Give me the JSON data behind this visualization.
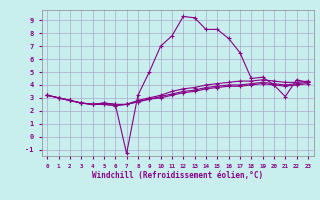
{
  "title": "",
  "xlabel": "Windchill (Refroidissement éolien,°C)",
  "ylabel": "",
  "xlim": [
    -0.5,
    23.5
  ],
  "ylim": [
    -1.5,
    9.8
  ],
  "yticks": [
    -1,
    0,
    1,
    2,
    3,
    4,
    5,
    6,
    7,
    8,
    9
  ],
  "xticks": [
    0,
    1,
    2,
    3,
    4,
    5,
    6,
    7,
    8,
    9,
    10,
    11,
    12,
    13,
    14,
    15,
    16,
    17,
    18,
    19,
    20,
    21,
    22,
    23
  ],
  "bg_color": "#c8eeee",
  "grid_color": "#aaaacc",
  "line_color": "#880088",
  "lines": [
    {
      "x": [
        0,
        1,
        2,
        3,
        4,
        5,
        6,
        7,
        8,
        9,
        10,
        11,
        12,
        13,
        14,
        15,
        16,
        17,
        18,
        19,
        20,
        21,
        22,
        23
      ],
      "y": [
        3.2,
        3.0,
        2.8,
        2.6,
        2.5,
        2.6,
        2.5,
        -1.3,
        3.2,
        5.0,
        7.0,
        7.8,
        9.3,
        9.2,
        8.3,
        8.3,
        7.6,
        6.5,
        4.5,
        4.6,
        4.0,
        3.1,
        4.4,
        4.2
      ]
    },
    {
      "x": [
        0,
        1,
        2,
        3,
        4,
        5,
        6,
        7,
        8,
        9,
        10,
        11,
        12,
        13,
        14,
        15,
        16,
        17,
        18,
        19,
        20,
        21,
        22,
        23
      ],
      "y": [
        3.2,
        3.0,
        2.8,
        2.6,
        2.5,
        2.6,
        2.5,
        2.5,
        2.8,
        3.0,
        3.2,
        3.5,
        3.7,
        3.8,
        4.0,
        4.1,
        4.2,
        4.3,
        4.3,
        4.4,
        4.3,
        4.2,
        4.2,
        4.3
      ]
    },
    {
      "x": [
        0,
        1,
        2,
        3,
        4,
        5,
        6,
        7,
        8,
        9,
        10,
        11,
        12,
        13,
        14,
        15,
        16,
        17,
        18,
        19,
        20,
        21,
        22,
        23
      ],
      "y": [
        3.2,
        3.0,
        2.8,
        2.6,
        2.5,
        2.5,
        2.4,
        2.5,
        2.7,
        2.9,
        3.1,
        3.3,
        3.5,
        3.6,
        3.8,
        3.9,
        4.0,
        4.0,
        4.1,
        4.2,
        4.1,
        4.0,
        4.1,
        4.2
      ]
    },
    {
      "x": [
        0,
        1,
        2,
        3,
        4,
        5,
        6,
        7,
        8,
        9,
        10,
        11,
        12,
        13,
        14,
        15,
        16,
        17,
        18,
        19,
        20,
        21,
        22,
        23
      ],
      "y": [
        3.2,
        3.0,
        2.8,
        2.6,
        2.5,
        2.5,
        2.4,
        2.5,
        2.7,
        2.9,
        3.0,
        3.2,
        3.4,
        3.5,
        3.7,
        3.8,
        3.9,
        3.9,
        4.0,
        4.1,
        4.0,
        3.9,
        4.0,
        4.1
      ]
    }
  ]
}
